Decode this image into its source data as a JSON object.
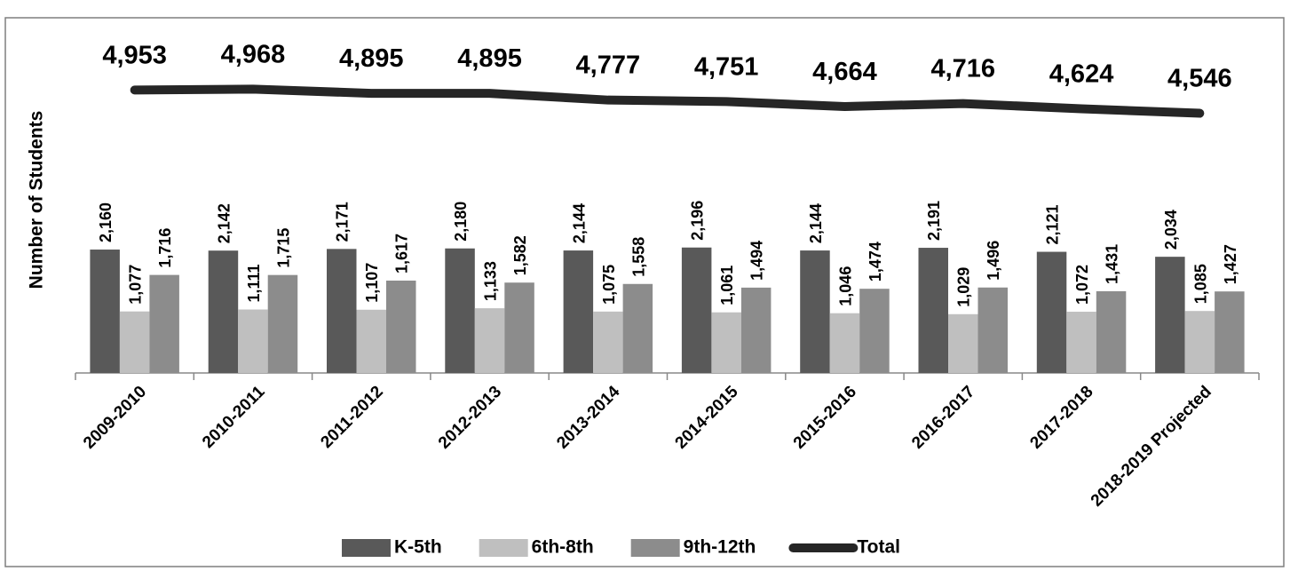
{
  "chart_data": {
    "type": "bar",
    "y_label": "Number of Students",
    "categories": [
      "2009-2010",
      "2010-2011",
      "2011-2012",
      "2012-2013",
      "2013-2014",
      "2014-2015",
      "2015-2016",
      "2016-2017",
      "2017-2018",
      "2018-2019 Projected"
    ],
    "ylim": [
      0,
      6000
    ],
    "series": [
      {
        "name": "K-5th",
        "color": "#595959",
        "values": [
          2160,
          2142,
          2171,
          2180,
          2144,
          2196,
          2144,
          2191,
          2121,
          2034
        ],
        "value_labels": [
          "2,160",
          "2,142",
          "2,171",
          "2,180",
          "2,144",
          "2,196",
          "2,144",
          "2,191",
          "2,121",
          "2,034"
        ]
      },
      {
        "name": "6th-8th",
        "color": "#bfbfbf",
        "values": [
          1077,
          1111,
          1107,
          1133,
          1075,
          1061,
          1046,
          1029,
          1072,
          1085
        ],
        "value_labels": [
          "1,077",
          "1,111",
          "1,107",
          "1,133",
          "1,075",
          "1,061",
          "1,046",
          "1,029",
          "1,072",
          "1,085"
        ]
      },
      {
        "name": "9th-12th",
        "color": "#8c8c8c",
        "values": [
          1716,
          1715,
          1617,
          1582,
          1558,
          1494,
          1474,
          1496,
          1431,
          1427
        ],
        "value_labels": [
          "1,716",
          "1,715",
          "1,617",
          "1,582",
          "1,558",
          "1,494",
          "1,474",
          "1,496",
          "1,431",
          "1,427"
        ]
      },
      {
        "name": "Total",
        "type": "line",
        "color": "#262626",
        "values": [
          4953,
          4968,
          4895,
          4895,
          4777,
          4751,
          4664,
          4716,
          4624,
          4546
        ],
        "value_labels": [
          "4,953",
          "4,968",
          "4,895",
          "4,895",
          "4,777",
          "4,751",
          "4,664",
          "4,716",
          "4,624",
          "4,546"
        ]
      }
    ]
  }
}
